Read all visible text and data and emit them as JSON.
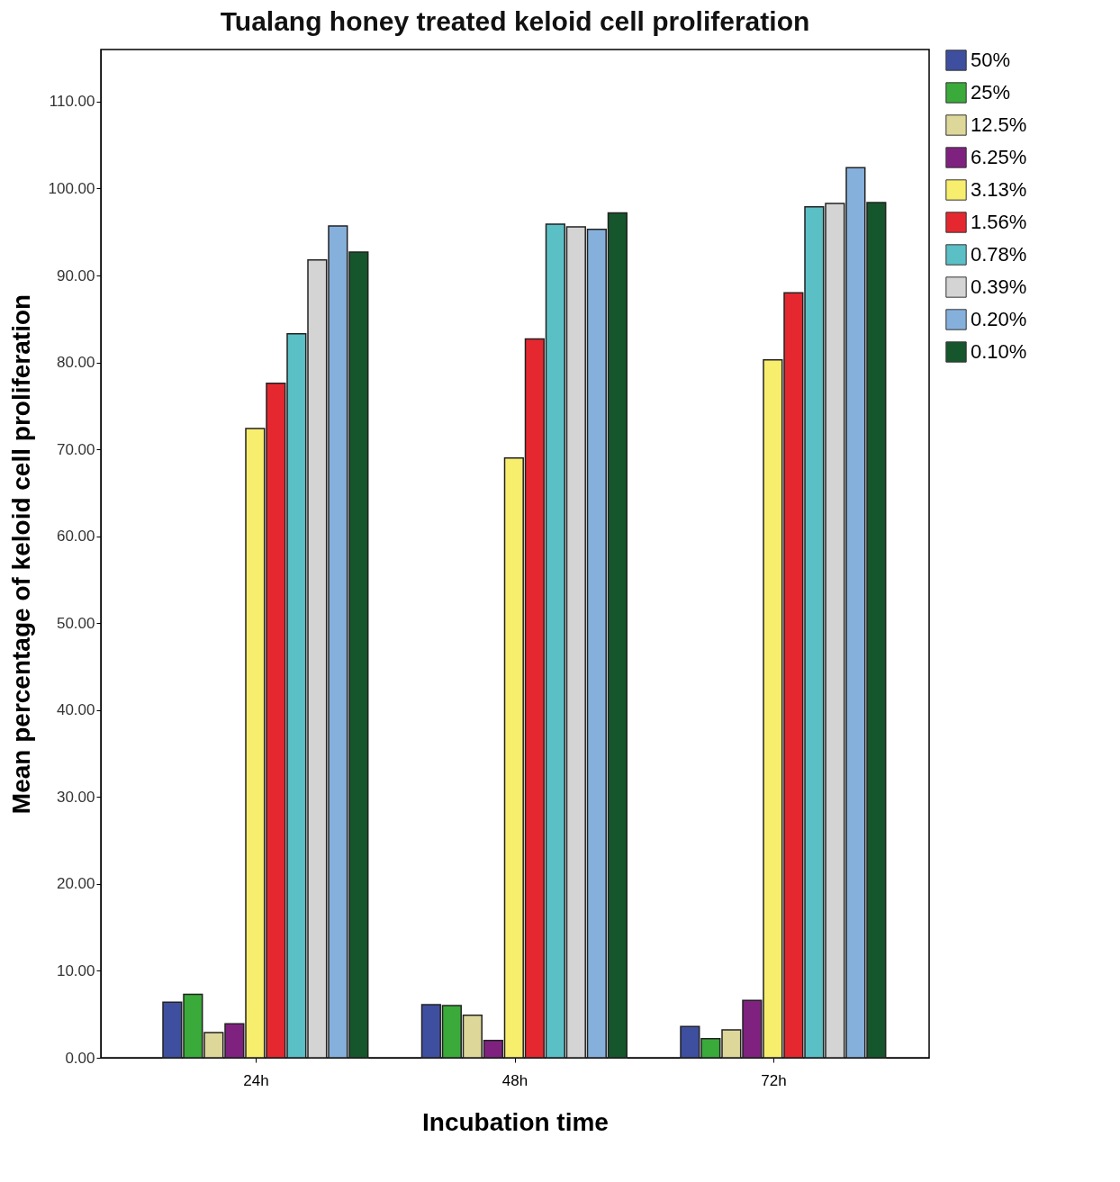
{
  "chart_data": {
    "type": "bar",
    "title": "Tualang honey treated keloid cell proliferation",
    "xlabel": "Incubation time",
    "ylabel": "Mean percentage of keloid cell proliferation",
    "categories": [
      "24h",
      "48h",
      "72h"
    ],
    "series": [
      {
        "name": "50%",
        "color": "#3f4f9f",
        "values": [
          6.4,
          6.1,
          3.6
        ]
      },
      {
        "name": "25%",
        "color": "#3aaa3a",
        "values": [
          7.3,
          6.0,
          2.2
        ]
      },
      {
        "name": "12.5%",
        "color": "#ddd89a",
        "values": [
          2.9,
          4.9,
          3.2
        ]
      },
      {
        "name": "6.25%",
        "color": "#7f227f",
        "values": [
          3.9,
          2.0,
          6.6
        ]
      },
      {
        "name": "3.13%",
        "color": "#f8ee6e",
        "values": [
          72.4,
          69.0,
          80.3
        ]
      },
      {
        "name": "1.56%",
        "color": "#e5282f",
        "values": [
          77.6,
          82.7,
          88.0
        ]
      },
      {
        "name": "0.78%",
        "color": "#5bbfc6",
        "values": [
          83.3,
          95.9,
          97.9
        ]
      },
      {
        "name": "0.39%",
        "color": "#d4d4d4",
        "values": [
          91.8,
          95.6,
          98.3
        ]
      },
      {
        "name": "0.20%",
        "color": "#86b0dc",
        "values": [
          95.7,
          95.3,
          102.4
        ]
      },
      {
        "name": "0.10%",
        "color": "#16562c",
        "values": [
          92.7,
          97.2,
          98.4
        ]
      }
    ],
    "ylim": [
      0,
      116
    ],
    "yticks": [
      {
        "value": 0,
        "label": "0.00"
      },
      {
        "value": 10,
        "label": "10.00"
      },
      {
        "value": 20,
        "label": "20.00"
      },
      {
        "value": 30,
        "label": "30.00"
      },
      {
        "value": 40,
        "label": "40.00"
      },
      {
        "value": 50,
        "label": "50.00"
      },
      {
        "value": 60,
        "label": "60.00"
      },
      {
        "value": 70,
        "label": "70.00"
      },
      {
        "value": 80,
        "label": "80.00"
      },
      {
        "value": 90,
        "label": "90.00"
      },
      {
        "value": 100,
        "label": "100.00"
      },
      {
        "value": 110,
        "label": "110.00"
      }
    ],
    "grid": false,
    "legend": "right"
  }
}
